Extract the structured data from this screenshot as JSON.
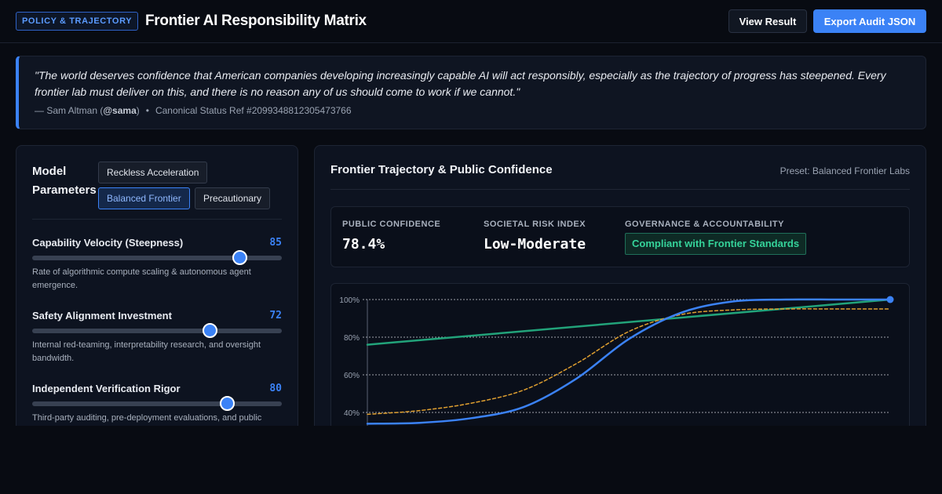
{
  "header": {
    "badge": "POLICY & TRAJECTORY",
    "title": "Frontier AI Responsibility Matrix",
    "view_button": "View Result",
    "export_button": "Export Audit JSON"
  },
  "quote": {
    "text": "\"The world deserves confidence that American companies developing increasingly capable AI will act responsibly, especially as the trajectory of progress has steepened. Every frontier lab must deliver on this, and there is no reason any of us should come to work if we cannot.\"",
    "author_prefix": "— Sam Altman (",
    "handle": "@sama",
    "author_suffix": ")",
    "separator": "•",
    "ref": "Canonical Status Ref #2099348812305473766"
  },
  "left_panel": {
    "title": "Model Parameters",
    "presets": [
      {
        "label": "Reckless Acceleration",
        "active": false
      },
      {
        "label": "Balanced Frontier",
        "active": true
      },
      {
        "label": "Precautionary",
        "active": false
      }
    ],
    "params": [
      {
        "label": "Capability Velocity (Steepness)",
        "value": 85,
        "value_text": "85",
        "fraction": 0.83,
        "desc": "Rate of algorithmic compute scaling & autonomous agent emergence."
      },
      {
        "label": "Safety Alignment Investment",
        "value": 72,
        "value_text": "72",
        "fraction": 0.71,
        "desc": "Internal red-teaming, interpretability research, and oversight bandwidth."
      },
      {
        "label": "Independent Verification Rigor",
        "value": 80,
        "value_text": "80",
        "fraction": 0.78,
        "desc": "Third-party auditing, pre-deployment evaluations, and public"
      }
    ]
  },
  "right_panel": {
    "title": "Frontier Trajectory & Public Confidence",
    "preset_label": "Preset: Balanced Frontier Labs",
    "metrics": {
      "confidence_label": "PUBLIC CONFIDENCE",
      "confidence_value": "78.4%",
      "risk_label": "SOCIETAL RISK INDEX",
      "risk_value": "Low-Moderate",
      "gov_label": "GOVERNANCE & ACCOUNTABILITY",
      "gov_value": "Compliant with Frontier Standards"
    }
  },
  "colors": {
    "accent": "#3b82f6",
    "capability_line": "#3b82f6",
    "confidence_line": "#22a37a",
    "safety_line": "#e0a030",
    "governance_green": "#35d39a"
  },
  "chart_data": {
    "type": "line",
    "yticks": [
      "100%",
      "80%",
      "60%",
      "40%"
    ],
    "ylim": [
      0,
      100
    ],
    "xlim": [
      0,
      100
    ],
    "series": [
      {
        "key": "capability",
        "color": "#3b82f6",
        "dashed": false,
        "end_marker": true,
        "x": [
          0,
          10,
          20,
          30,
          40,
          50,
          60,
          70,
          80,
          90,
          100
        ],
        "y": [
          34,
          34.5,
          37,
          43,
          58,
          79,
          93,
          99,
          100,
          100,
          100
        ]
      },
      {
        "key": "confidence",
        "color": "#22a37a",
        "dashed": false,
        "end_marker": false,
        "x": [
          0,
          100
        ],
        "y": [
          76,
          100
        ]
      },
      {
        "key": "safety",
        "color": "#e0a030",
        "dashed": true,
        "end_marker": false,
        "x": [
          0,
          10,
          20,
          30,
          40,
          50,
          60,
          70,
          80,
          90,
          100
        ],
        "y": [
          39,
          41,
          45,
          52,
          66,
          83,
          92,
          94.5,
          95,
          95,
          95
        ]
      }
    ]
  }
}
